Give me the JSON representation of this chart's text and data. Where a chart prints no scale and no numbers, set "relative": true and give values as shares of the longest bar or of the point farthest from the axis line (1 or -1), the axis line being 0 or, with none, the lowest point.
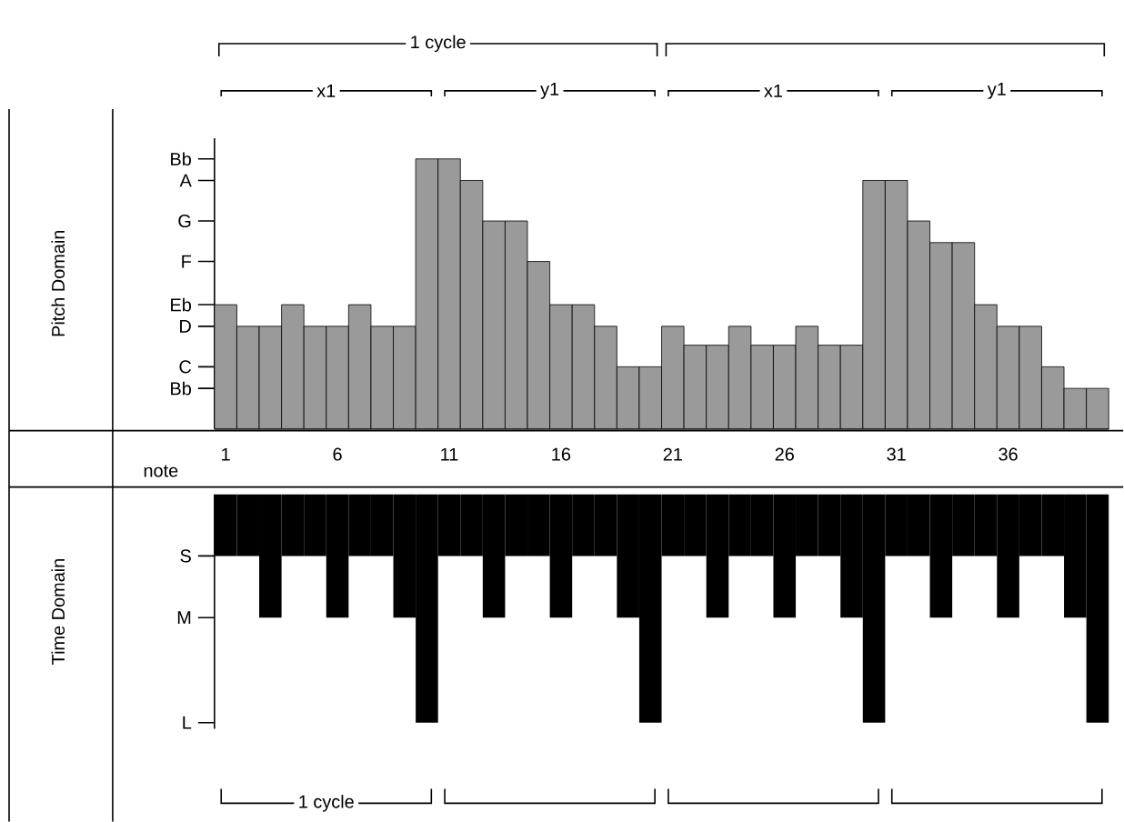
{
  "chart_data": [
    {
      "type": "bar",
      "relative": true,
      "ylabel": "Pitch Domain",
      "color": "#9a9a9a",
      "tick_labels": false,
      "categories": [
        "1",
        null,
        null,
        null,
        null,
        "6",
        null,
        null,
        null,
        null,
        "11",
        null,
        null,
        null,
        null,
        "16",
        null,
        null,
        null,
        null,
        "21",
        null,
        null,
        null,
        null,
        "26",
        null,
        null,
        null,
        null,
        "31",
        null,
        null,
        null,
        null,
        "36",
        null,
        null,
        null,
        null
      ],
      "values": [
        0.46,
        0.38,
        0.38,
        0.46,
        0.38,
        0.38,
        0.46,
        0.38,
        0.38,
        1,
        1,
        0.92,
        0.77,
        0.77,
        0.62,
        0.46,
        0.46,
        0.38,
        0.23,
        0.23,
        0.38,
        0.31,
        0.31,
        0.38,
        0.31,
        0.31,
        0.38,
        0.31,
        0.31,
        0.92,
        0.92,
        0.77,
        0.69,
        0.69,
        0.46,
        0.38,
        0.38,
        0.23,
        0.15,
        0.15
      ],
      "annotations": [
        "1 cycle",
        "x1",
        "y1",
        "x1",
        "y1",
        "Bb",
        "C",
        "D",
        "Eb",
        "F",
        "G",
        "A",
        "Bb"
      ]
    },
    {
      "type": "bar",
      "relative": true,
      "ylabel": "Time Domain",
      "xlabel": "note",
      "color": "#000000",
      "tick_labels": "x",
      "categories": [
        "1",
        null,
        null,
        null,
        null,
        "6",
        null,
        null,
        null,
        null,
        "11",
        null,
        null,
        null,
        null,
        "16",
        null,
        null,
        null,
        null,
        "21",
        null,
        null,
        null,
        null,
        "26",
        null,
        null,
        null,
        null,
        "31",
        null,
        null,
        null,
        null,
        "36",
        null,
        null,
        null,
        null
      ],
      "values": [
        -0.27,
        -0.27,
        -0.54,
        -0.27,
        -0.27,
        -0.54,
        -0.27,
        -0.27,
        -0.54,
        -1,
        -0.27,
        -0.27,
        -0.54,
        -0.27,
        -0.27,
        -0.54,
        -0.27,
        -0.27,
        -0.54,
        -1,
        -0.27,
        -0.27,
        -0.54,
        -0.27,
        -0.27,
        -0.54,
        -0.27,
        -0.27,
        -0.54,
        -1,
        -0.27,
        -0.27,
        -0.54,
        -0.27,
        -0.27,
        -0.54,
        -0.27,
        -0.27,
        -0.54,
        -1
      ],
      "annotations": [
        "1 cycle",
        "S",
        "M",
        "L"
      ]
    }
  ]
}
